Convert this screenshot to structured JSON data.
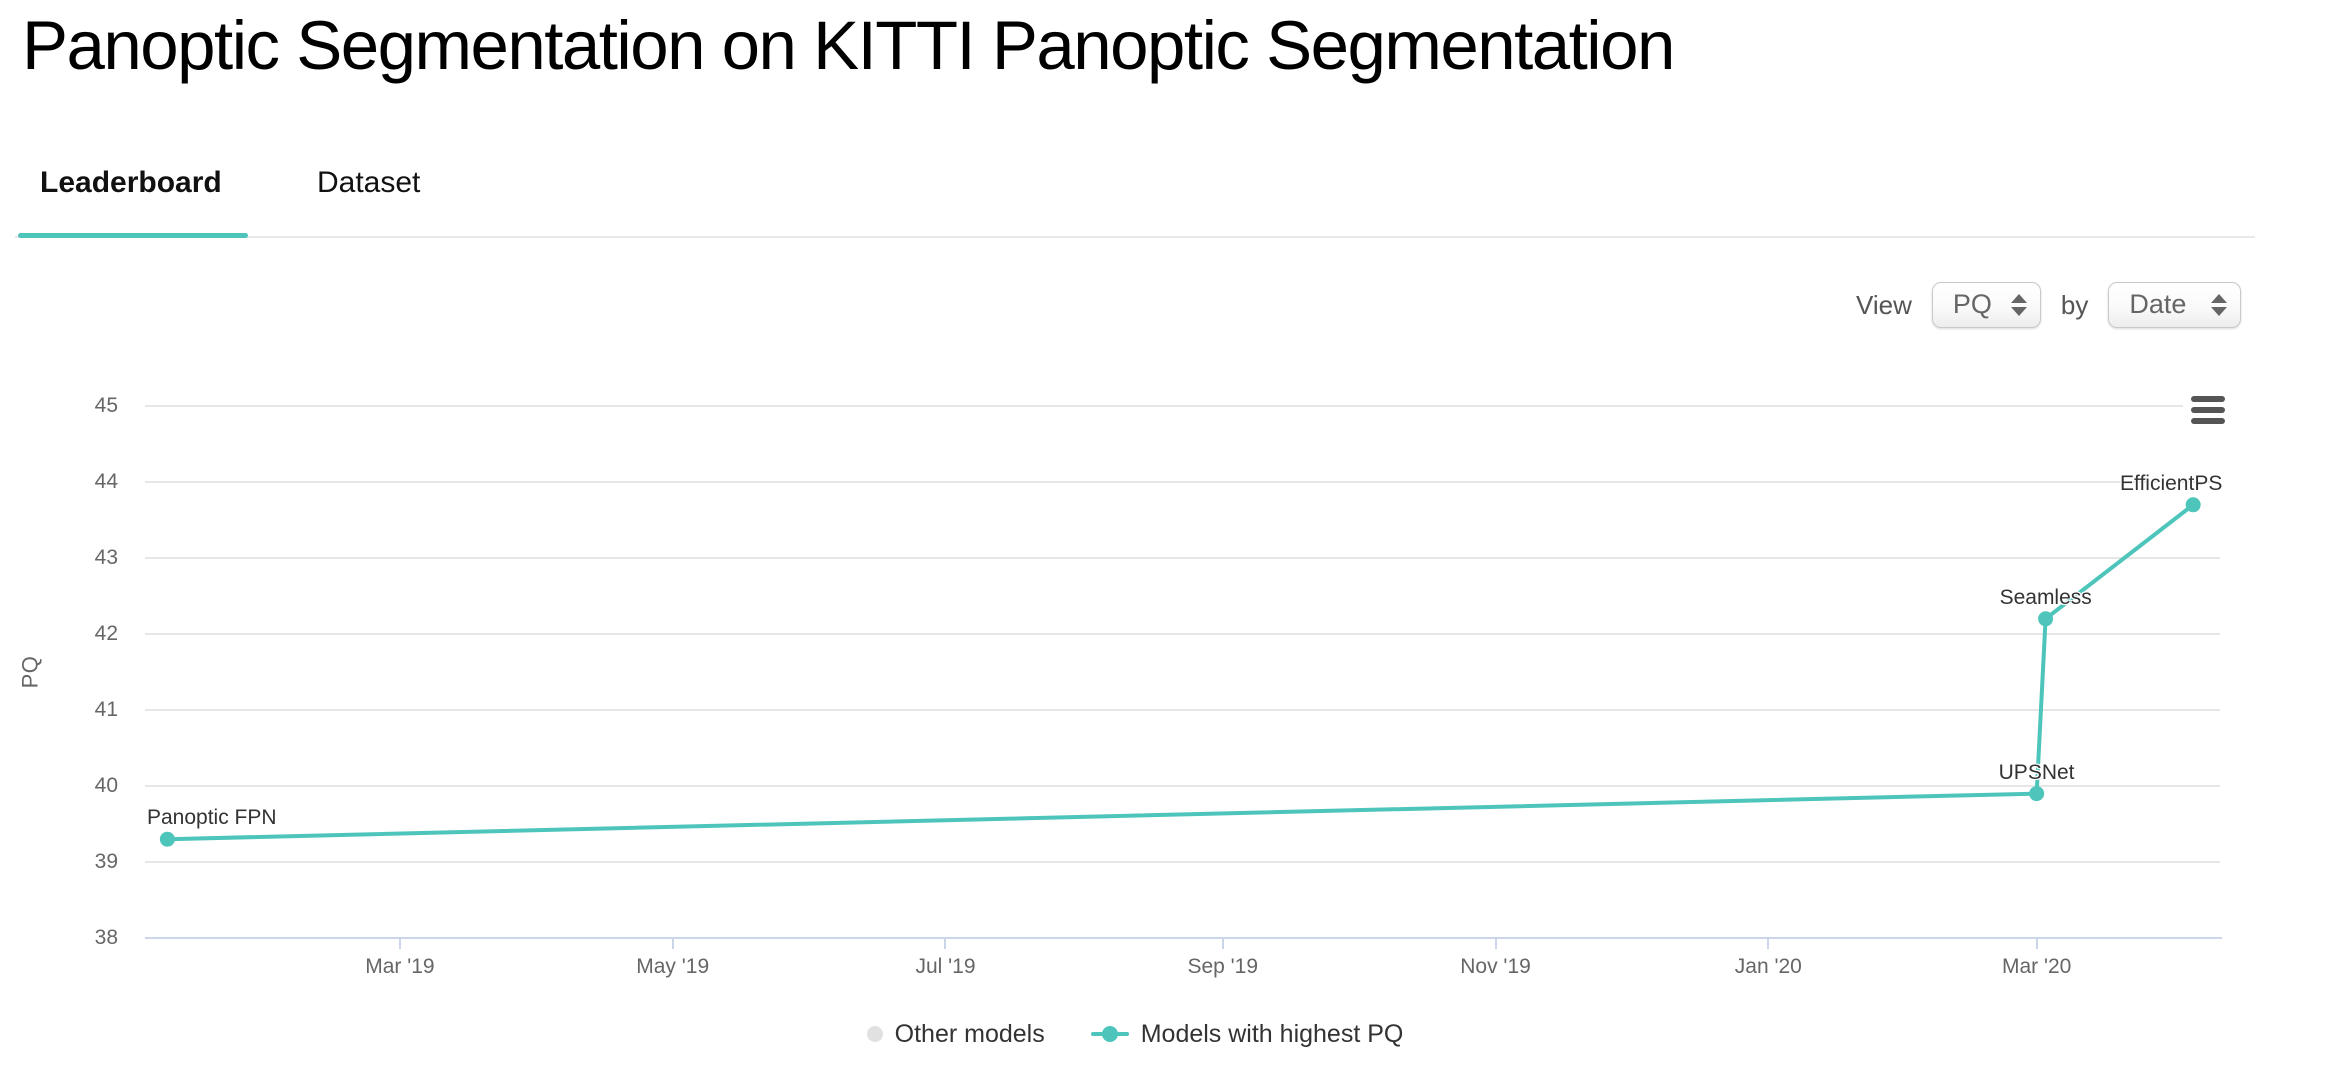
{
  "page": {
    "title": "Panoptic Segmentation on KITTI Panoptic Segmentation"
  },
  "tabs": [
    {
      "label": "Leaderboard",
      "active": true
    },
    {
      "label": "Dataset",
      "active": false
    }
  ],
  "controls": {
    "view_label": "View",
    "metric_select": {
      "value": "PQ"
    },
    "by_label": "by",
    "group_select": {
      "value": "Date"
    }
  },
  "export_menu": {
    "icon": "hamburger-menu-icon"
  },
  "colors": {
    "accent_teal": "#4dc5bb",
    "other_models_gray": "#e1e1e1",
    "gridline": "#e6e6e6",
    "axis_line": "#ccd6eb",
    "tick_label": "#666666",
    "data_label": "#333333"
  },
  "chart_data": {
    "type": "line",
    "title": "",
    "xlabel": "",
    "ylabel": "PQ",
    "ylim": [
      38,
      45
    ],
    "yticks": [
      "45",
      "44",
      "43",
      "42",
      "41",
      "40",
      "39",
      "38"
    ],
    "ytick_values": [
      45,
      44,
      43,
      42,
      41,
      40,
      39,
      38
    ],
    "x_type": "date",
    "xlim": [
      "2019-01-03",
      "2020-04-11"
    ],
    "xticks": [
      {
        "date": "2019-03-01",
        "label": "Mar '19"
      },
      {
        "date": "2019-05-01",
        "label": "May '19"
      },
      {
        "date": "2019-07-01",
        "label": "Jul '19"
      },
      {
        "date": "2019-09-01",
        "label": "Sep '19"
      },
      {
        "date": "2019-11-01",
        "label": "Nov '19"
      },
      {
        "date": "2020-01-01",
        "label": "Jan '20"
      },
      {
        "date": "2020-03-01",
        "label": "Mar '20"
      }
    ],
    "grid": true,
    "legend_position": "bottom",
    "series": [
      {
        "name": "Models with highest PQ",
        "points": [
          {
            "model": "Panoptic FPN",
            "date": "2019-01-08",
            "pq": 39.3
          },
          {
            "model": "UPSNet",
            "date": "2020-03-01",
            "pq": 39.9
          },
          {
            "model": "Seamless",
            "date": "2020-03-03",
            "pq": 42.2
          },
          {
            "model": "EfficientPS",
            "date": "2020-04-05",
            "pq": 43.7
          }
        ]
      }
    ],
    "legend": [
      {
        "label": "Other models",
        "marker": "dot"
      },
      {
        "label": "Models with highest PQ",
        "marker": "line-dot"
      }
    ]
  }
}
